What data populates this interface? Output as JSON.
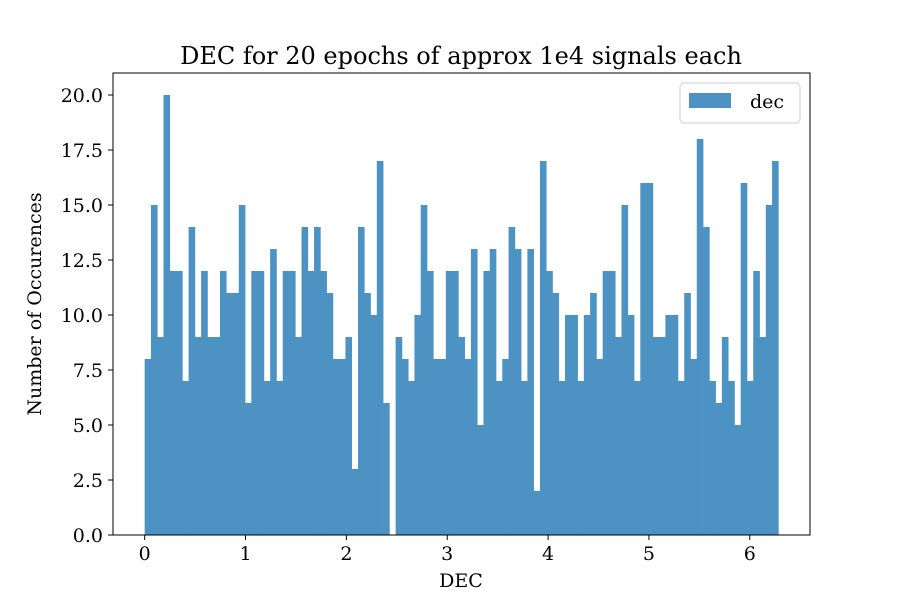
{
  "chart_data": {
    "type": "bar",
    "title": "DEC for 20 epochs of approx 1e4 signals each",
    "xlabel": "DEC",
    "ylabel": "Number of Occurences",
    "xlim": [
      -0.314,
      6.597
    ],
    "ylim": [
      0,
      21
    ],
    "xticks": [
      0,
      1,
      2,
      3,
      4,
      5,
      6
    ],
    "xtick_labels": [
      "0",
      "1",
      "2",
      "3",
      "4",
      "5",
      "6"
    ],
    "yticks": [
      0,
      2.5,
      5,
      7.5,
      10,
      12.5,
      15,
      17.5,
      20
    ],
    "ytick_labels": [
      "0.0",
      "2.5",
      "5.0",
      "7.5",
      "10.0",
      "12.5",
      "15.0",
      "17.5",
      "20.0"
    ],
    "bin_start": 0,
    "bin_end": 6.283,
    "grid": false,
    "legend_position": "top-right",
    "color": "#4c92c3",
    "series": [
      {
        "name": "dec",
        "values": [
          8,
          15,
          9,
          20,
          12,
          12,
          7,
          14,
          9,
          12,
          9,
          9,
          12,
          11,
          11,
          15,
          6,
          12,
          12,
          7,
          13,
          7,
          12,
          12,
          9,
          14,
          12,
          14,
          12,
          11,
          8,
          8,
          9,
          3,
          14,
          11,
          10,
          17,
          6,
          0,
          9,
          8,
          7,
          10,
          15,
          12,
          8,
          8,
          12,
          12,
          9,
          8,
          13,
          5,
          12,
          13,
          7,
          8,
          14,
          13,
          7,
          13,
          2,
          17,
          12,
          11,
          7,
          10,
          10,
          7,
          10,
          11,
          8,
          12,
          12,
          9,
          15,
          10,
          7,
          16,
          16,
          9,
          9,
          10,
          10,
          7,
          11,
          8,
          18,
          14,
          7,
          6,
          9,
          7,
          5,
          16,
          7,
          12,
          9,
          15,
          17
        ]
      }
    ]
  }
}
